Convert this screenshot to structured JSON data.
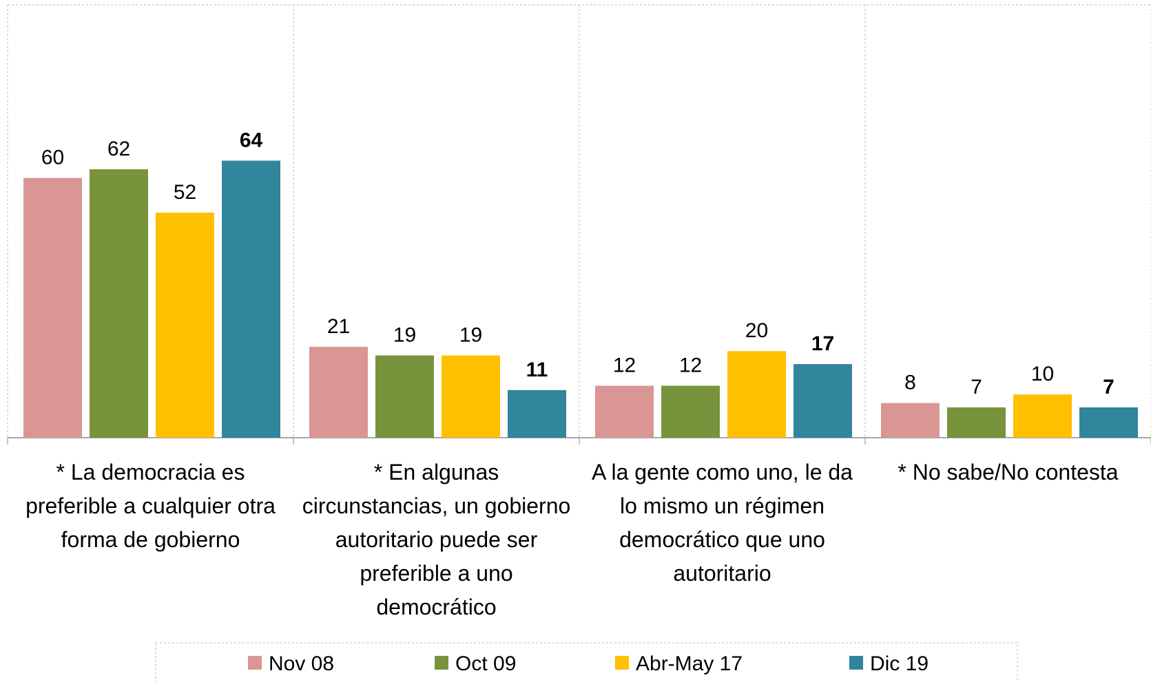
{
  "chart_data": {
    "type": "bar",
    "categories": [
      "* La democracia es preferible a cualquier otra forma de gobierno",
      "* En algunas circunstancias, un gobierno autoritario puede ser preferible a uno democrático",
      "A la gente como uno, le da lo mismo un régimen democrático que uno autoritario",
      "* No sabe/No contesta"
    ],
    "series": [
      {
        "name": "Nov 08",
        "color": "#d99694",
        "values": [
          60,
          21,
          12,
          8
        ],
        "bold_labels": false
      },
      {
        "name": "Oct 09",
        "color": "#77933c",
        "values": [
          62,
          19,
          12,
          7
        ],
        "bold_labels": false
      },
      {
        "name": "Abr-May 17",
        "color": "#ffc000",
        "values": [
          52,
          19,
          20,
          10
        ],
        "bold_labels": false
      },
      {
        "name": "Dic 19",
        "color": "#31859c",
        "values": [
          64,
          11,
          17,
          7
        ],
        "bold_labels": true
      }
    ],
    "ylim": [
      0,
      100
    ],
    "legend": "bottom"
  }
}
